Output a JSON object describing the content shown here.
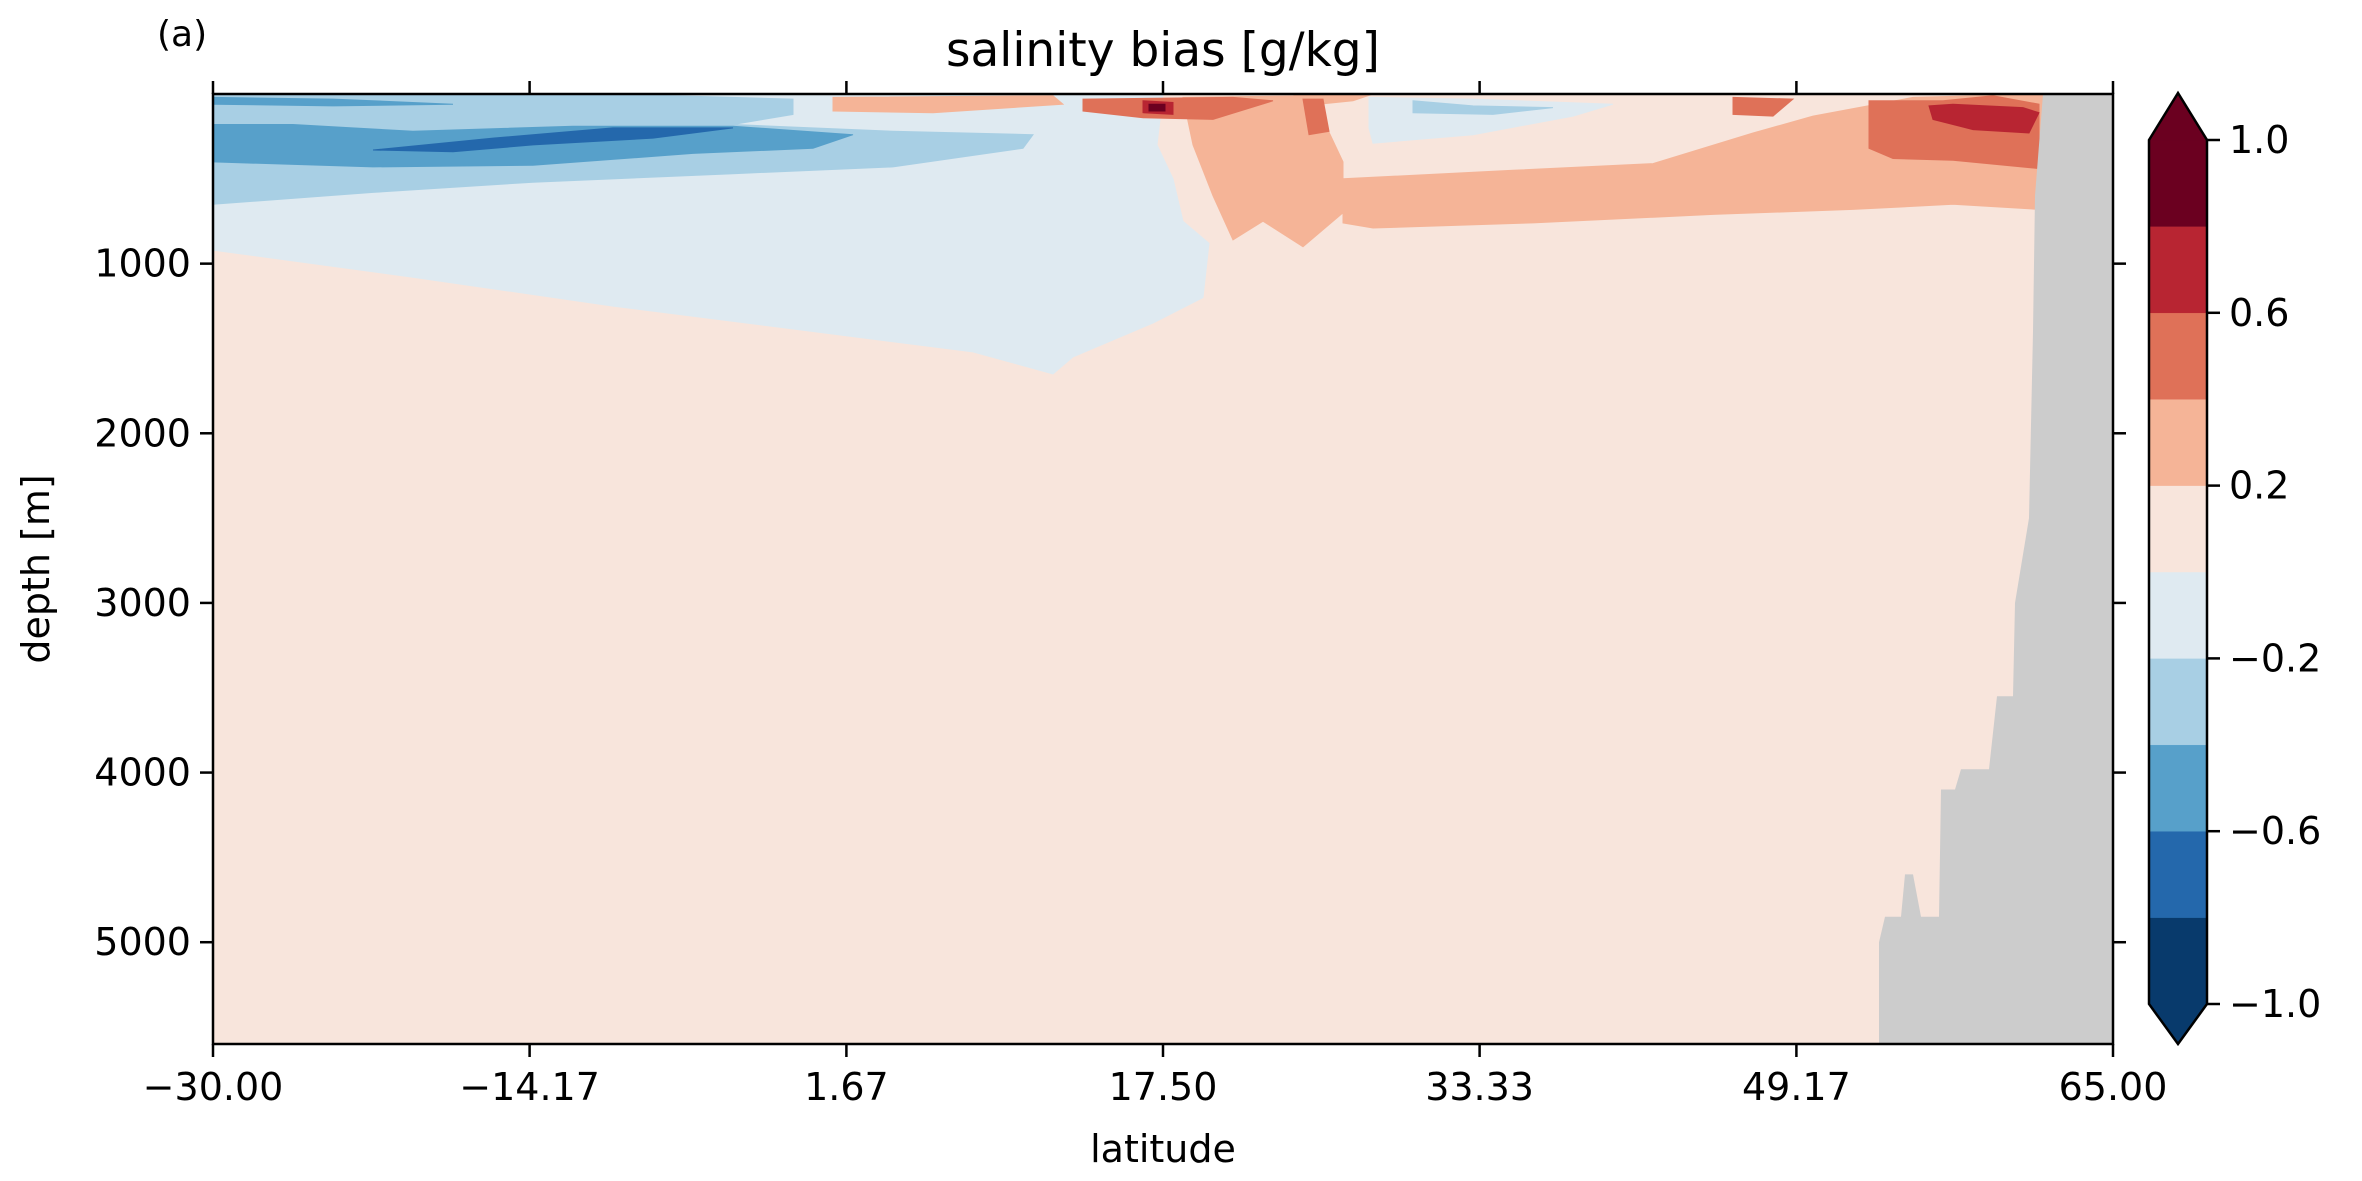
{
  "chart_data": {
    "type": "heatmap",
    "panel_label": "(a)",
    "title": "salinity bias [g/kg]",
    "xlabel": "latitude",
    "ylabel": "depth [m]",
    "xlim": [
      -30.0,
      65.0
    ],
    "ylim": [
      5600,
      0
    ],
    "y_inverted": true,
    "x_ticks": [
      -30.0,
      -14.17,
      1.67,
      17.5,
      33.33,
      49.17,
      65.0
    ],
    "x_tick_labels": [
      "−30.00",
      "−14.17",
      "1.67",
      "17.50",
      "33.33",
      "49.17",
      "65.00"
    ],
    "y_ticks": [
      1000,
      2000,
      3000,
      4000,
      5000
    ],
    "y_tick_labels": [
      "1000",
      "2000",
      "3000",
      "4000",
      "5000"
    ],
    "grid": false,
    "background_color": "#f8e5dc",
    "colorbar": {
      "levels": [
        -1.0,
        -0.8,
        -0.6,
        -0.4,
        -0.2,
        0.0,
        0.2,
        0.4,
        0.6,
        0.8,
        1.0
      ],
      "colors": [
        "#083a6c",
        "#2468ac",
        "#57a0ca",
        "#a8cfe4",
        "#dfeaf1",
        "#f8e5dc",
        "#f5b497",
        "#df7158",
        "#b82532",
        "#6b0020"
      ],
      "extend": "both",
      "under_color": "#083a6c",
      "over_color": "#6b0020",
      "ticks": [
        -1.0,
        -0.6,
        -0.2,
        0.2,
        0.6,
        1.0
      ],
      "tick_labels": [
        "−1.0",
        "−0.6",
        "−0.2",
        "0.2",
        "0.6",
        "1.0"
      ]
    },
    "land_mask_color": "#cccccc",
    "regions": [
      {
        "level": -0.2,
        "color": "#dfeaf1",
        "points": [
          [
            -30,
            0
          ],
          [
            3,
            0
          ],
          [
            12,
            0
          ],
          [
            17.5,
            0
          ],
          [
            17.2,
            300
          ],
          [
            18,
            500
          ],
          [
            18.5,
            750
          ],
          [
            19.8,
            880
          ],
          [
            19.5,
            1200
          ],
          [
            17,
            1350
          ],
          [
            13,
            1550
          ],
          [
            12,
            1650
          ],
          [
            8,
            1520
          ],
          [
            0,
            1400
          ],
          [
            -10,
            1250
          ],
          [
            -20,
            1080
          ],
          [
            -30,
            920
          ]
        ]
      },
      {
        "level": -0.2,
        "color": "#dfeaf1",
        "points": [
          [
            27.8,
            20
          ],
          [
            33,
            30
          ],
          [
            40,
            60
          ],
          [
            38,
            130
          ],
          [
            33,
            240
          ],
          [
            28,
            290
          ],
          [
            27.8,
            200
          ]
        ]
      },
      {
        "level": -0.4,
        "color": "#a8cfe4",
        "points": [
          [
            -30,
            0
          ],
          [
            -10,
            0
          ],
          [
            -1,
            30
          ],
          [
            -1,
            120
          ],
          [
            -4,
            180
          ],
          [
            4,
            220
          ],
          [
            11,
            240
          ],
          [
            10.5,
            320
          ],
          [
            4,
            430
          ],
          [
            -4,
            470
          ],
          [
            -14,
            520
          ],
          [
            -22,
            580
          ],
          [
            -30,
            650
          ]
        ]
      },
      {
        "level": -0.4,
        "color": "#a8cfe4",
        "points": [
          [
            30,
            40
          ],
          [
            33,
            70
          ],
          [
            37,
            80
          ],
          [
            34,
            120
          ],
          [
            30,
            110
          ]
        ]
      },
      {
        "level": -0.6,
        "color": "#57a0ca",
        "points": [
          [
            -30,
            180
          ],
          [
            -26,
            180
          ],
          [
            -20,
            220
          ],
          [
            -12,
            190
          ],
          [
            -4,
            190
          ],
          [
            2,
            240
          ],
          [
            0,
            320
          ],
          [
            -6,
            350
          ],
          [
            -14,
            420
          ],
          [
            -22,
            430
          ],
          [
            -30,
            400
          ]
        ]
      },
      {
        "level": -0.6,
        "color": "#57a0ca",
        "points": [
          [
            -30,
            20
          ],
          [
            -24,
            30
          ],
          [
            -18,
            60
          ],
          [
            -24,
            70
          ],
          [
            -30,
            60
          ]
        ]
      },
      {
        "level": -0.8,
        "color": "#2468ac",
        "points": [
          [
            -22,
            330
          ],
          [
            -16,
            260
          ],
          [
            -10,
            200
          ],
          [
            -4,
            200
          ],
          [
            -8,
            260
          ],
          [
            -14,
            300
          ],
          [
            -18,
            340
          ]
        ]
      },
      {
        "level": 0.2,
        "color": "#f5b497",
        "points": [
          [
            1,
            20
          ],
          [
            12,
            10
          ],
          [
            12.5,
            60
          ],
          [
            6,
            110
          ],
          [
            1,
            100
          ]
        ]
      },
      {
        "level": 0.2,
        "color": "#f5b497",
        "points": [
          [
            18.5,
            20
          ],
          [
            25,
            10
          ],
          [
            25.5,
            150
          ],
          [
            26.5,
            400
          ],
          [
            26.5,
            700
          ],
          [
            24.5,
            900
          ],
          [
            22.5,
            750
          ],
          [
            21,
            860
          ],
          [
            20,
            600
          ],
          [
            19.5,
            450
          ],
          [
            19,
            300
          ]
        ]
      },
      {
        "level": 0.2,
        "color": "#f5b497",
        "points": [
          [
            24,
            0
          ],
          [
            28,
            0
          ],
          [
            27,
            40
          ],
          [
            24.5,
            70
          ]
        ]
      },
      {
        "level": 0.2,
        "color": "#f5b497",
        "points": [
          [
            26.5,
            500
          ],
          [
            35,
            450
          ],
          [
            42,
            410
          ],
          [
            47,
            230
          ],
          [
            50,
            130
          ],
          [
            55,
            20
          ],
          [
            61.5,
            0
          ],
          [
            61.3,
            400
          ],
          [
            61.3,
            680
          ],
          [
            57,
            650
          ],
          [
            52,
            680
          ],
          [
            45,
            710
          ],
          [
            36,
            760
          ],
          [
            28,
            790
          ],
          [
            26.5,
            760
          ]
        ]
      },
      {
        "level": 0.4,
        "color": "#df7158",
        "points": [
          [
            13.5,
            30
          ],
          [
            21,
            20
          ],
          [
            23,
            40
          ],
          [
            20,
            150
          ],
          [
            16.5,
            140
          ],
          [
            13.5,
            100
          ]
        ]
      },
      {
        "level": 0.4,
        "color": "#df7158",
        "points": [
          [
            24.5,
            30
          ],
          [
            25.5,
            30
          ],
          [
            25.8,
            220
          ],
          [
            24.8,
            240
          ]
        ]
      },
      {
        "level": 0.4,
        "color": "#df7158",
        "points": [
          [
            46,
            20
          ],
          [
            49,
            30
          ],
          [
            48,
            130
          ],
          [
            46,
            120
          ]
        ]
      },
      {
        "level": 0.4,
        "color": "#df7158",
        "points": [
          [
            52.8,
            40
          ],
          [
            56.5,
            40
          ],
          [
            59,
            10
          ],
          [
            61.3,
            60
          ],
          [
            61.3,
            440
          ],
          [
            57,
            390
          ],
          [
            54,
            380
          ],
          [
            52.8,
            320
          ]
        ]
      },
      {
        "level": 0.6,
        "color": "#b82532",
        "points": [
          [
            16.5,
            40
          ],
          [
            18,
            50
          ],
          [
            18,
            120
          ],
          [
            16.5,
            110
          ]
        ]
      },
      {
        "level": 0.6,
        "color": "#b82532",
        "points": [
          [
            55.8,
            70
          ],
          [
            57,
            60
          ],
          [
            60.5,
            80
          ],
          [
            61.3,
            110
          ],
          [
            60.8,
            230
          ],
          [
            58,
            210
          ],
          [
            56,
            150
          ]
        ]
      },
      {
        "level": 0.8,
        "color": "#6b0020",
        "points": [
          [
            16.8,
            60
          ],
          [
            17.6,
            60
          ],
          [
            17.6,
            100
          ],
          [
            16.8,
            100
          ]
        ]
      }
    ],
    "land_outline": [
      [
        61.5,
        0
      ],
      [
        65,
        0
      ],
      [
        65,
        5600
      ],
      [
        53.3,
        5600
      ],
      [
        53.3,
        5000
      ],
      [
        53.6,
        4850
      ],
      [
        54.4,
        4850
      ],
      [
        54.6,
        4600
      ],
      [
        55,
        4600
      ],
      [
        55.4,
        4850
      ],
      [
        56.3,
        4850
      ],
      [
        56.4,
        4100
      ],
      [
        57.1,
        4100
      ],
      [
        57.4,
        3980
      ],
      [
        58.8,
        3980
      ],
      [
        59.2,
        3550
      ],
      [
        60,
        3550
      ],
      [
        60.1,
        3000
      ],
      [
        60.8,
        2500
      ],
      [
        61,
        1400
      ],
      [
        61.1,
        600
      ],
      [
        61.3,
        300
      ]
    ]
  }
}
